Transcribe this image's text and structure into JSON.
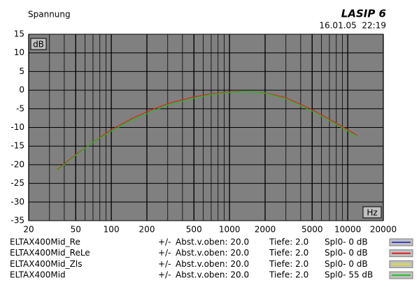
{
  "chart_data": {
    "type": "line",
    "title": "Spannung",
    "brand": "LASIP 6",
    "timestamp": "16.01.05  22:19",
    "y_unit": "dB",
    "x_unit": "Hz",
    "log_x": true,
    "grid": true,
    "xlim": [
      20,
      20000
    ],
    "xticks": [
      20,
      50,
      100,
      200,
      500,
      1000,
      2000,
      5000,
      10000,
      20000
    ],
    "ylim": [
      -35,
      15
    ],
    "yticks": [
      15,
      10,
      5,
      0,
      -5,
      -10,
      -15,
      -20,
      -25,
      -30,
      -35
    ],
    "x": [
      35,
      50,
      70,
      100,
      150,
      200,
      300,
      500,
      700,
      1000,
      1500,
      2000,
      3000,
      5000,
      7000,
      10000,
      12000
    ],
    "series": [
      {
        "name": "ELTAX400Mid_Re",
        "color": "#4040c0",
        "tol": "+/-",
        "abst": "Abst.v.oben: 20.0",
        "tiefe": "Tiefe: 2.0",
        "spl": "Spl0- 0 dB",
        "values": [
          null,
          null,
          null,
          null,
          null,
          null,
          null,
          null,
          null,
          null,
          null,
          null,
          null,
          null,
          null,
          null,
          null
        ]
      },
      {
        "name": "ELTAX400Mid_ReLe",
        "color": "#e02020",
        "tol": "+/-",
        "abst": "Abst.v.oben: 20.0",
        "tiefe": "Tiefe: 2.0",
        "spl": "Spl0- 0 dB",
        "values": [
          -21.3,
          -17.3,
          -14,
          -10.6,
          -7.6,
          -5.8,
          -3.6,
          -1.8,
          -1,
          -0.5,
          -0.4,
          -0.7,
          -2,
          -5.2,
          -7.8,
          -10.6,
          -12.1
        ]
      },
      {
        "name": "ELTAX400Mid_Zls",
        "color": "#e0e020",
        "tol": "+/-",
        "abst": "Abst.v.oben: 20.0",
        "tiefe": "Tiefe: 2.0",
        "spl": "Spl0- 0 dB",
        "values": [
          null,
          null,
          null,
          null,
          null,
          null,
          null,
          null,
          null,
          null,
          null,
          null,
          null,
          null,
          null,
          null,
          null
        ]
      },
      {
        "name": "ELTAX400Mid",
        "color": "#20c020",
        "tol": "+/-",
        "abst": "Abst.v.oben: 20.0",
        "tiefe": "Tiefe: 2.0",
        "spl": "Spl0- 55 dB",
        "values": [
          -21.5,
          -17.5,
          -14,
          -11,
          -8,
          -6.3,
          -4,
          -2.2,
          -1.2,
          -0.6,
          -0.4,
          -0.8,
          -2.3,
          -5.6,
          -8.1,
          -10.9,
          -12.6
        ]
      }
    ]
  }
}
